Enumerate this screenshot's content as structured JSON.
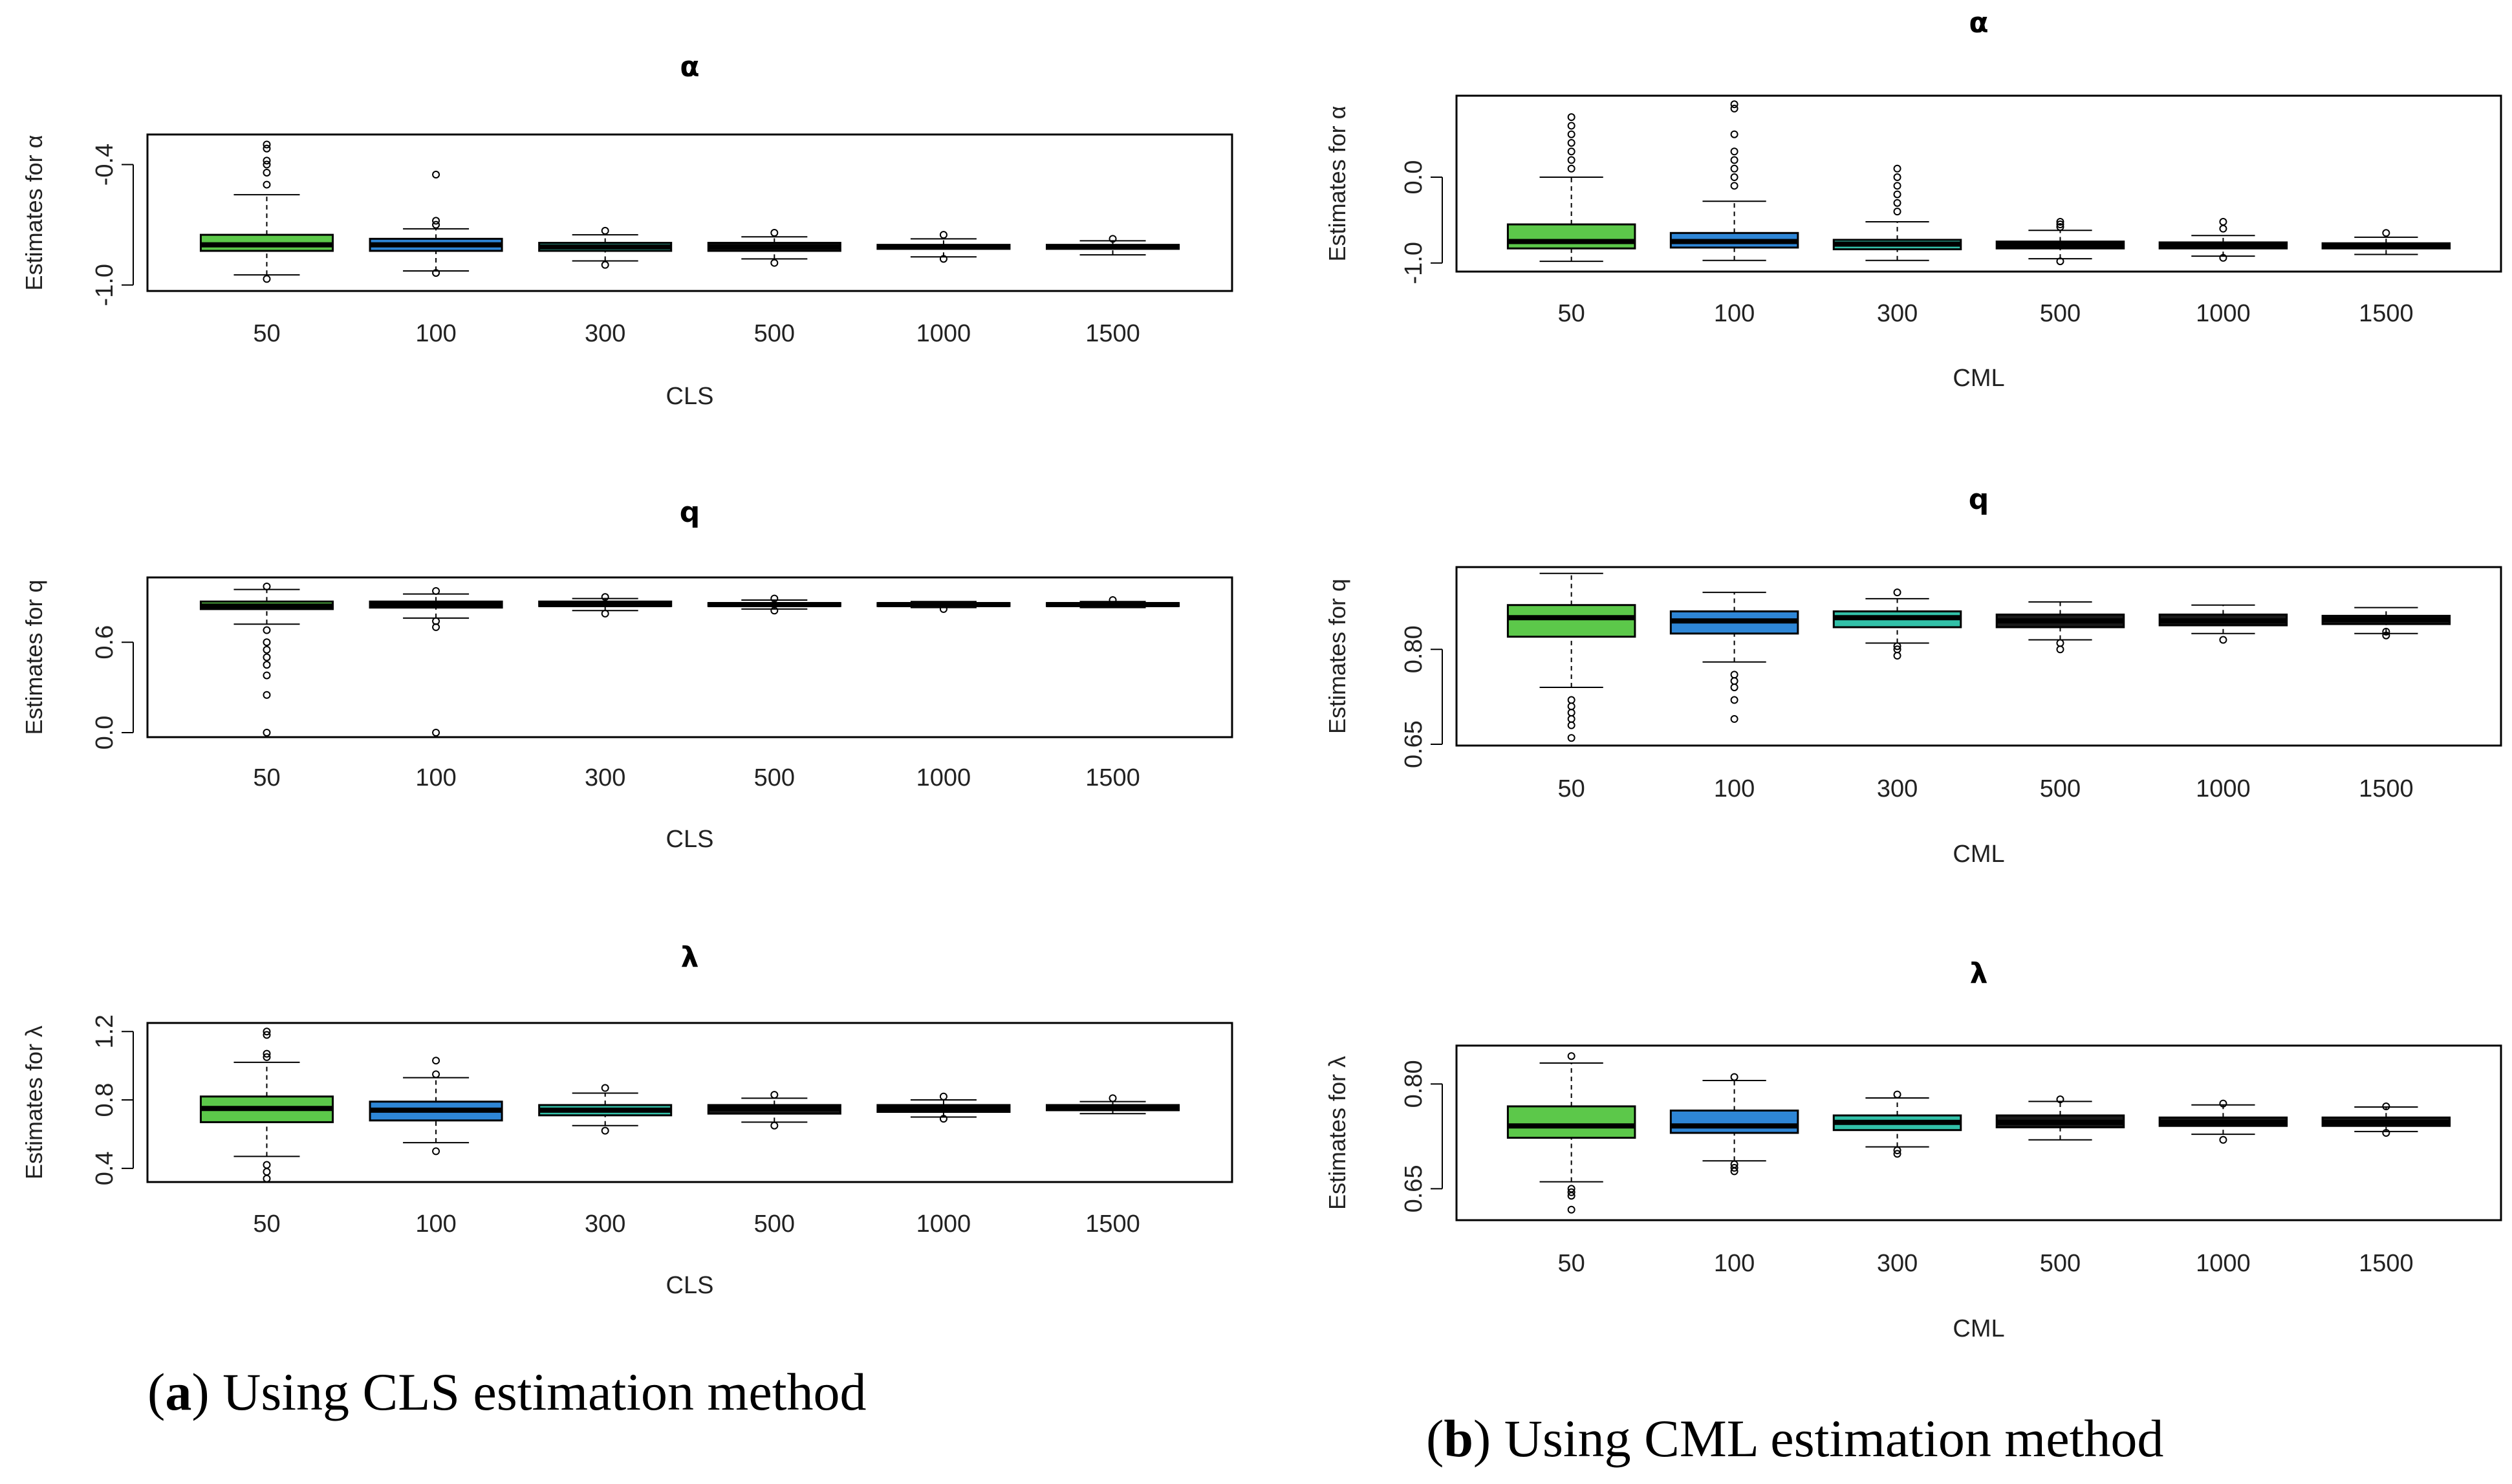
{
  "captions": {
    "a": {
      "letter": "a",
      "text": "Using CLS estimation method"
    },
    "b": {
      "letter": "b",
      "text": "Using CML estimation method"
    }
  },
  "colors": {
    "n50": "#5cc84a",
    "n100": "#2e86d6",
    "n300": "#32c0a8",
    "other": "#1a1a1a",
    "frame": "#000000"
  },
  "chart_data": [
    {
      "type": "boxplot",
      "panel": "a",
      "title": "α",
      "xlabel": "CLS",
      "ylabel": "Estimates for α",
      "categories": [
        "50",
        "100",
        "300",
        "500",
        "1000",
        "1500"
      ],
      "ylim": [
        -1.03,
        -0.25
      ],
      "yticks": [
        -1.0,
        -0.4
      ],
      "ytick_labels": [
        "-1.0",
        "-0.4"
      ],
      "boxes": [
        {
          "whislo": -0.95,
          "q1": -0.83,
          "med": -0.8,
          "q3": -0.75,
          "whishi": -0.55,
          "fliers": [
            -0.97,
            -0.5,
            -0.44,
            -0.4,
            -0.38,
            -0.32,
            -0.3
          ]
        },
        {
          "whislo": -0.93,
          "q1": -0.83,
          "med": -0.8,
          "q3": -0.77,
          "whishi": -0.72,
          "fliers": [
            -0.94,
            -0.7,
            -0.68,
            -0.45
          ]
        },
        {
          "whislo": -0.88,
          "q1": -0.83,
          "med": -0.81,
          "q3": -0.79,
          "whishi": -0.75,
          "fliers": [
            -0.9,
            -0.73
          ]
        },
        {
          "whislo": -0.87,
          "q1": -0.83,
          "med": -0.81,
          "q3": -0.79,
          "whishi": -0.76,
          "fliers": [
            -0.89,
            -0.74
          ]
        },
        {
          "whislo": -0.86,
          "q1": -0.82,
          "med": -0.81,
          "q3": -0.8,
          "whishi": -0.77,
          "fliers": [
            -0.87,
            -0.75
          ]
        },
        {
          "whislo": -0.85,
          "q1": -0.82,
          "med": -0.81,
          "q3": -0.8,
          "whishi": -0.78,
          "fliers": [
            -0.77
          ]
        }
      ]
    },
    {
      "type": "boxplot",
      "panel": "a",
      "title": "q",
      "xlabel": "CLS",
      "ylabel": "Estimates for q",
      "categories": [
        "50",
        "100",
        "300",
        "500",
        "1000",
        "1500"
      ],
      "ylim": [
        -0.03,
        1.03
      ],
      "yticks": [
        0.0,
        0.6
      ],
      "ytick_labels": [
        "0.0",
        "0.6"
      ],
      "boxes": [
        {
          "whislo": 0.72,
          "q1": 0.82,
          "med": 0.84,
          "q3": 0.87,
          "whishi": 0.95,
          "fliers": [
            0.0,
            0.25,
            0.38,
            0.45,
            0.5,
            0.55,
            0.6,
            0.68,
            0.97
          ]
        },
        {
          "whislo": 0.76,
          "q1": 0.83,
          "med": 0.85,
          "q3": 0.87,
          "whishi": 0.92,
          "fliers": [
            0.0,
            0.7,
            0.74,
            0.94
          ]
        },
        {
          "whislo": 0.81,
          "q1": 0.84,
          "med": 0.85,
          "q3": 0.87,
          "whishi": 0.89,
          "fliers": [
            0.79,
            0.9
          ]
        },
        {
          "whislo": 0.82,
          "q1": 0.84,
          "med": 0.85,
          "q3": 0.86,
          "whishi": 0.88,
          "fliers": [
            0.81,
            0.89
          ]
        },
        {
          "whislo": 0.83,
          "q1": 0.84,
          "med": 0.85,
          "q3": 0.86,
          "whishi": 0.87,
          "fliers": [
            0.82
          ]
        },
        {
          "whislo": 0.83,
          "q1": 0.84,
          "med": 0.85,
          "q3": 0.86,
          "whishi": 0.87,
          "fliers": [
            0.88
          ]
        }
      ]
    },
    {
      "type": "boxplot",
      "panel": "a",
      "title": "λ",
      "xlabel": "CLS",
      "ylabel": "Estimates for λ",
      "categories": [
        "50",
        "100",
        "300",
        "500",
        "1000",
        "1500"
      ],
      "ylim": [
        0.32,
        1.25
      ],
      "yticks": [
        0.4,
        0.8,
        1.2
      ],
      "ytick_labels": [
        "0.4",
        "0.8",
        "1.2"
      ],
      "boxes": [
        {
          "whislo": 0.47,
          "q1": 0.67,
          "med": 0.75,
          "q3": 0.82,
          "whishi": 1.02,
          "fliers": [
            0.34,
            0.38,
            0.42,
            1.05,
            1.07,
            1.18,
            1.2
          ]
        },
        {
          "whislo": 0.55,
          "q1": 0.68,
          "med": 0.74,
          "q3": 0.79,
          "whishi": 0.93,
          "fliers": [
            0.5,
            0.95,
            1.03
          ]
        },
        {
          "whislo": 0.65,
          "q1": 0.71,
          "med": 0.74,
          "q3": 0.77,
          "whishi": 0.84,
          "fliers": [
            0.62,
            0.87
          ]
        },
        {
          "whislo": 0.67,
          "q1": 0.72,
          "med": 0.75,
          "q3": 0.77,
          "whishi": 0.81,
          "fliers": [
            0.65,
            0.83
          ]
        },
        {
          "whislo": 0.7,
          "q1": 0.73,
          "med": 0.75,
          "q3": 0.77,
          "whishi": 0.8,
          "fliers": [
            0.69,
            0.82
          ]
        },
        {
          "whislo": 0.72,
          "q1": 0.74,
          "med": 0.75,
          "q3": 0.77,
          "whishi": 0.79,
          "fliers": [
            0.81
          ]
        }
      ]
    },
    {
      "type": "boxplot",
      "panel": "b",
      "title": "α",
      "xlabel": "CML",
      "ylabel": "Estimates for α",
      "categories": [
        "50",
        "100",
        "300",
        "500",
        "1000",
        "1500"
      ],
      "ylim": [
        -1.1,
        0.95
      ],
      "yticks": [
        -1.0,
        0.0
      ],
      "ytick_labels": [
        "-1.0",
        "0.0"
      ],
      "boxes": [
        {
          "whislo": -0.98,
          "q1": -0.83,
          "med": -0.75,
          "q3": -0.55,
          "whishi": 0.0,
          "fliers": [
            0.1,
            0.2,
            0.3,
            0.4,
            0.5,
            0.6,
            0.7
          ]
        },
        {
          "whislo": -0.97,
          "q1": -0.82,
          "med": -0.75,
          "q3": -0.65,
          "whishi": -0.28,
          "fliers": [
            -0.1,
            0.0,
            0.1,
            0.2,
            0.3,
            0.5,
            0.8,
            0.85
          ]
        },
        {
          "whislo": -0.97,
          "q1": -0.84,
          "med": -0.78,
          "q3": -0.73,
          "whishi": -0.52,
          "fliers": [
            -0.4,
            -0.3,
            -0.2,
            -0.1,
            0.0,
            0.1
          ]
        },
        {
          "whislo": -0.95,
          "q1": -0.83,
          "med": -0.79,
          "q3": -0.75,
          "whishi": -0.62,
          "fliers": [
            -0.98,
            -0.58,
            -0.55,
            -0.52
          ]
        },
        {
          "whislo": -0.92,
          "q1": -0.83,
          "med": -0.79,
          "q3": -0.76,
          "whishi": -0.68,
          "fliers": [
            -0.94,
            -0.6,
            -0.52
          ]
        },
        {
          "whislo": -0.9,
          "q1": -0.83,
          "med": -0.8,
          "q3": -0.77,
          "whishi": -0.7,
          "fliers": [
            -0.65
          ]
        }
      ]
    },
    {
      "type": "boxplot",
      "panel": "b",
      "title": "q",
      "xlabel": "CML",
      "ylabel": "Estimates for q",
      "categories": [
        "50",
        "100",
        "300",
        "500",
        "1000",
        "1500"
      ],
      "ylim": [
        0.648,
        0.93
      ],
      "yticks": [
        0.65,
        0.8
      ],
      "ytick_labels": [
        "0.65",
        "0.80"
      ],
      "boxes": [
        {
          "whislo": 0.74,
          "q1": 0.82,
          "med": 0.85,
          "q3": 0.87,
          "whishi": 0.92,
          "fliers": [
            0.66,
            0.68,
            0.69,
            0.7,
            0.71,
            0.72
          ]
        },
        {
          "whislo": 0.78,
          "q1": 0.825,
          "med": 0.845,
          "q3": 0.86,
          "whishi": 0.89,
          "fliers": [
            0.69,
            0.72,
            0.74,
            0.75,
            0.76
          ]
        },
        {
          "whislo": 0.81,
          "q1": 0.835,
          "med": 0.85,
          "q3": 0.86,
          "whishi": 0.88,
          "fliers": [
            0.79,
            0.8,
            0.805,
            0.89
          ]
        },
        {
          "whislo": 0.815,
          "q1": 0.835,
          "med": 0.845,
          "q3": 0.855,
          "whishi": 0.875,
          "fliers": [
            0.8,
            0.81
          ]
        },
        {
          "whislo": 0.825,
          "q1": 0.838,
          "med": 0.845,
          "q3": 0.855,
          "whishi": 0.87,
          "fliers": [
            0.815
          ]
        },
        {
          "whislo": 0.825,
          "q1": 0.84,
          "med": 0.847,
          "q3": 0.853,
          "whishi": 0.866,
          "fliers": [
            0.822,
            0.828
          ]
        }
      ]
    },
    {
      "type": "boxplot",
      "panel": "b",
      "title": "λ",
      "xlabel": "CML",
      "ylabel": "Estimates for λ",
      "categories": [
        "50",
        "100",
        "300",
        "500",
        "1000",
        "1500"
      ],
      "ylim": [
        0.605,
        0.855
      ],
      "yticks": [
        0.65,
        0.8
      ],
      "ytick_labels": [
        "0.65",
        "0.80"
      ],
      "boxes": [
        {
          "whislo": 0.66,
          "q1": 0.723,
          "med": 0.74,
          "q3": 0.768,
          "whishi": 0.83,
          "fliers": [
            0.62,
            0.64,
            0.645,
            0.65,
            0.84
          ]
        },
        {
          "whislo": 0.69,
          "q1": 0.73,
          "med": 0.74,
          "q3": 0.762,
          "whishi": 0.805,
          "fliers": [
            0.675,
            0.68,
            0.685,
            0.81
          ]
        },
        {
          "whislo": 0.71,
          "q1": 0.734,
          "med": 0.745,
          "q3": 0.755,
          "whishi": 0.78,
          "fliers": [
            0.7,
            0.705,
            0.785
          ]
        },
        {
          "whislo": 0.72,
          "q1": 0.738,
          "med": 0.745,
          "q3": 0.755,
          "whishi": 0.775,
          "fliers": [
            0.778
          ]
        },
        {
          "whislo": 0.728,
          "q1": 0.74,
          "med": 0.745,
          "q3": 0.752,
          "whishi": 0.77,
          "fliers": [
            0.72,
            0.772
          ]
        },
        {
          "whislo": 0.732,
          "q1": 0.74,
          "med": 0.745,
          "q3": 0.752,
          "whishi": 0.767,
          "fliers": [
            0.73,
            0.768
          ]
        }
      ]
    }
  ]
}
